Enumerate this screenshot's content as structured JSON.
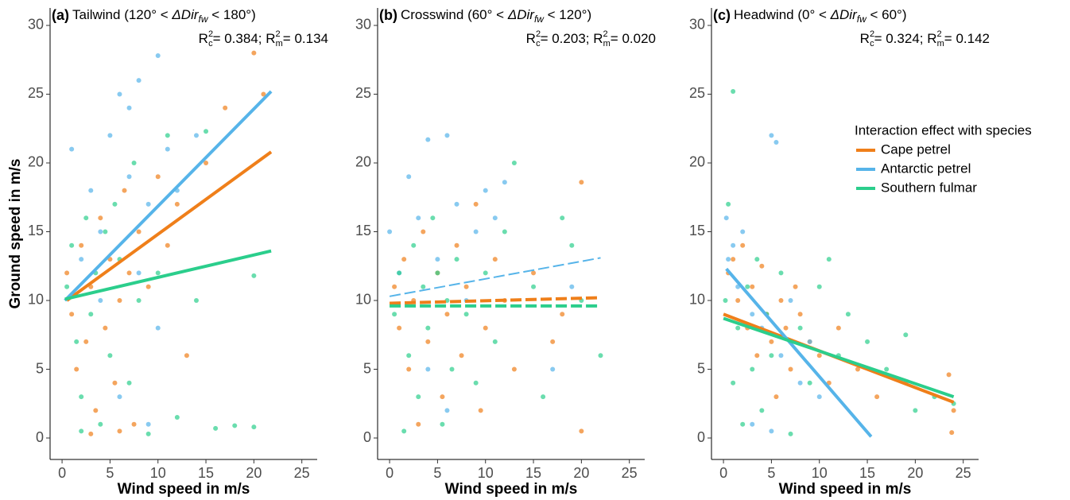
{
  "chart_data": [
    {
      "type": "scatter",
      "panel_label": "(a)",
      "title": [
        "Tailwind (120° < ",
        "ΔDir",
        "fw",
        " < 180°)"
      ],
      "annotation": [
        "R",
        "2",
        "c",
        "= 0.384; R",
        "2",
        "m",
        "= 0.134"
      ],
      "xlabel": "Wind speed in m/s",
      "ylabel": "Ground speed in m/s",
      "xlim": [
        -1.25,
        26.6
      ],
      "ylim": [
        -1.56,
        31.27
      ],
      "xticks": [
        0,
        5,
        10,
        15,
        20,
        25
      ],
      "yticks": [
        0,
        5,
        10,
        15,
        20,
        25,
        30
      ],
      "series": [
        {
          "color": "#ef7f1a",
          "x": [
            0.5,
            1,
            1.5,
            2,
            2.5,
            3,
            3.5,
            4,
            4.5,
            5,
            5.5,
            6,
            6.5,
            7,
            7.5,
            8,
            9,
            10,
            11,
            12,
            13,
            15,
            17,
            20,
            21,
            3,
            6
          ],
          "values": [
            12,
            9,
            5,
            14,
            7,
            11,
            2,
            16,
            8,
            13,
            4,
            10,
            18,
            12,
            1,
            15,
            11,
            19,
            14,
            17,
            6,
            20,
            24,
            28,
            25,
            0.3,
            0.5
          ],
          "fit": {
            "x": [
              0.5,
              21.8
            ],
            "values": [
              10,
              20.8
            ],
            "dash": false
          }
        },
        {
          "color": "#56b4e9",
          "x": [
            1,
            2,
            3,
            4,
            5,
            6,
            7,
            8,
            9,
            10,
            11,
            12,
            6,
            8,
            10,
            14,
            4,
            7,
            9
          ],
          "values": [
            21,
            13,
            18,
            15,
            22,
            25,
            19,
            26,
            17,
            27.8,
            21,
            18,
            3,
            12,
            8,
            22,
            10,
            24,
            1
          ],
          "fit": {
            "x": [
              0.3,
              21.8
            ],
            "values": [
              10,
              25.2
            ],
            "dash": false
          }
        },
        {
          "color": "#2bce8c",
          "x": [
            0.5,
            1,
            1.5,
            2,
            2.5,
            3,
            3.5,
            4,
            4.5,
            5,
            5.5,
            6,
            7,
            7.5,
            8,
            9,
            10,
            11,
            12,
            15,
            16,
            18,
            20,
            20,
            14,
            2
          ],
          "values": [
            11,
            14,
            7,
            3,
            16,
            9,
            12,
            1,
            15,
            6,
            17,
            13,
            4,
            20,
            10,
            0.3,
            12,
            22,
            1.5,
            22.3,
            0.7,
            0.9,
            0.8,
            11.8,
            10,
            0.5
          ],
          "fit": {
            "x": [
              0.3,
              21.8
            ],
            "values": [
              10.1,
              13.6
            ],
            "dash": false
          }
        }
      ]
    },
    {
      "type": "scatter",
      "panel_label": "(b)",
      "title": [
        "Crosswind (60° < ",
        "ΔDir",
        "fw",
        " < 120°)"
      ],
      "annotation": [
        "R",
        "2",
        "c",
        "= 0.203; R",
        "2",
        "m",
        "= 0.020"
      ],
      "xlabel": "Wind speed in m/s",
      "xlim": [
        -1.25,
        26.6
      ],
      "ylim": [
        -1.56,
        31.27
      ],
      "xticks": [
        0,
        5,
        10,
        15,
        20,
        25
      ],
      "yticks": [
        0,
        5,
        10,
        15,
        20,
        25,
        30
      ],
      "series": [
        {
          "color": "#ef7f1a",
          "x": [
            0.5,
            1,
            1.5,
            2,
            2.5,
            3,
            3.5,
            4,
            5,
            5.5,
            6,
            7,
            7.5,
            8,
            9,
            9.5,
            10,
            11,
            12,
            13,
            15,
            18,
            20,
            20,
            17
          ],
          "values": [
            11,
            8,
            13,
            5,
            10,
            1,
            15,
            7,
            12,
            3,
            9,
            14,
            6,
            11,
            17,
            2,
            8,
            13,
            10,
            5,
            12,
            9,
            18.6,
            0.5,
            7
          ],
          "fit": {
            "x": [
              0,
              22
            ],
            "values": [
              9.8,
              10.2
            ],
            "dash": true
          }
        },
        {
          "color": "#56b4e9",
          "x": [
            0,
            1,
            2,
            3,
            4,
            5,
            6,
            7,
            8,
            9,
            10,
            11,
            4,
            6,
            17,
            19,
            12
          ],
          "values": [
            15,
            12,
            19,
            16,
            21.7,
            13,
            22,
            17,
            10,
            15,
            18,
            16,
            5,
            2,
            5,
            11,
            18.6
          ],
          "fit": {
            "x": [
              0,
              22
            ],
            "values": [
              10.3,
              13.1
            ],
            "dash": true
          }
        },
        {
          "color": "#2bce8c",
          "x": [
            0.5,
            1,
            1.5,
            2,
            2.5,
            3,
            3.5,
            4,
            4.5,
            5,
            5.5,
            6,
            6.5,
            7,
            8,
            9,
            10,
            11,
            12,
            13,
            15,
            16,
            18,
            20,
            22,
            19
          ],
          "values": [
            9,
            12,
            0.5,
            6,
            14,
            3,
            11,
            8,
            16,
            12,
            1,
            10,
            5,
            13,
            9,
            4,
            12,
            7,
            15,
            20,
            11,
            3,
            16,
            10,
            6,
            14
          ],
          "fit": {
            "x": [
              0,
              22
            ],
            "values": [
              9.6,
              9.6
            ],
            "dash": true
          }
        }
      ]
    },
    {
      "type": "scatter",
      "panel_label": "(c)",
      "title": [
        "Headwind (0° < ",
        "ΔDir",
        "fw",
        " < 60°)"
      ],
      "annotation": [
        "R",
        "2",
        "c",
        "= 0.324; R",
        "2",
        "m",
        "= 0.142"
      ],
      "xlabel": "Wind speed in m/s",
      "xlim": [
        -1.25,
        26.6
      ],
      "ylim": [
        -1.56,
        31.27
      ],
      "xticks": [
        0,
        5,
        10,
        15,
        20,
        25
      ],
      "yticks": [
        0,
        5,
        10,
        15,
        20,
        25,
        30
      ],
      "legend": true,
      "legend_title": "Interaction effect with species",
      "series": [
        {
          "name": "Cape petrel",
          "color": "#ef7f1a",
          "x": [
            0.5,
            1,
            1.5,
            2,
            2.5,
            3,
            3.5,
            4,
            4.5,
            5,
            5.5,
            6,
            6.5,
            7,
            7.5,
            8,
            9,
            10,
            11,
            12,
            14,
            16,
            19,
            23.5,
            23.8,
            24
          ],
          "values": [
            12,
            13,
            10,
            14,
            8,
            11,
            6,
            12.5,
            9,
            7,
            3,
            10,
            8,
            5,
            11,
            9,
            7,
            6,
            4,
            8,
            5,
            3,
            4,
            4.6,
            0.4,
            2
          ],
          "fit": {
            "x": [
              0,
              24
            ],
            "values": [
              9,
              2.6
            ],
            "dash": false
          }
        },
        {
          "name": "Antarctic petrel",
          "color": "#56b4e9",
          "x": [
            0.3,
            0.5,
            1,
            1.5,
            2,
            3,
            4,
            5,
            5.5,
            6,
            7,
            8,
            9,
            10,
            3,
            5
          ],
          "values": [
            16,
            13,
            14,
            11,
            15,
            9,
            8,
            22,
            21.5,
            6,
            10,
            4,
            7,
            3,
            1,
            0.5
          ],
          "fit": {
            "x": [
              0.3,
              15.4
            ],
            "values": [
              12.3,
              0.1
            ],
            "dash": false
          }
        },
        {
          "name": "Southern fulmar",
          "color": "#2bce8c",
          "x": [
            0.2,
            1,
            0.5,
            1,
            1.5,
            2,
            2.5,
            3,
            3.5,
            4,
            4.5,
            5,
            6,
            7,
            8,
            9,
            10,
            11,
            12,
            13,
            15,
            17,
            19,
            20,
            22,
            24
          ],
          "values": [
            10,
            25.2,
            17,
            4,
            8,
            1,
            11,
            5,
            13,
            2,
            9,
            6,
            12,
            0.3,
            8,
            4,
            11,
            13,
            6,
            9,
            7,
            5,
            7.5,
            2,
            3,
            2.5
          ],
          "fit": {
            "x": [
              0,
              24
            ],
            "values": [
              8.7,
              3
            ],
            "dash": false
          }
        }
      ]
    }
  ]
}
